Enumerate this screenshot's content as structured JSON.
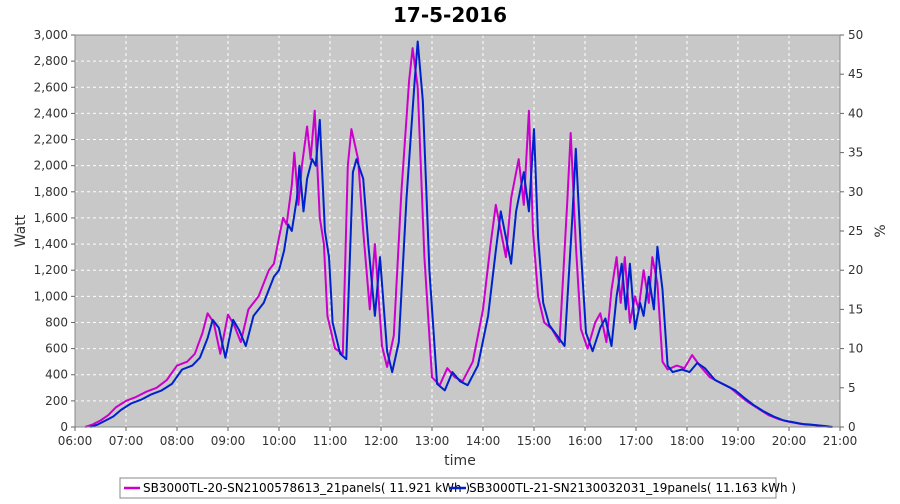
{
  "chart_data": {
    "type": "line",
    "title": "17-5-2016",
    "xlabel": "time",
    "ylabel": "Watt",
    "y2label": "%",
    "xlim": [
      6.0,
      21.0
    ],
    "ylim": [
      0,
      3000
    ],
    "y2lim": [
      0,
      50
    ],
    "xticks": [
      6,
      7,
      8,
      9,
      10,
      11,
      12,
      13,
      14,
      15,
      16,
      17,
      18,
      19,
      20,
      21
    ],
    "xtick_labels": [
      "06:00",
      "07:00",
      "08:00",
      "09:00",
      "10:00",
      "11:00",
      "12:00",
      "13:00",
      "14:00",
      "15:00",
      "16:00",
      "17:00",
      "18:00",
      "19:00",
      "20:00",
      "21:00"
    ],
    "yticks": [
      0,
      200,
      400,
      600,
      800,
      1000,
      1200,
      1400,
      1600,
      1800,
      2000,
      2200,
      2400,
      2600,
      2800,
      3000
    ],
    "ytick_labels": [
      "0",
      "200",
      "400",
      "600",
      "800",
      "1,000",
      "1,200",
      "1,400",
      "1,600",
      "1,800",
      "2,000",
      "2,200",
      "2,400",
      "2,600",
      "2,800",
      "3,000"
    ],
    "y2ticks": [
      0,
      5,
      10,
      15,
      20,
      25,
      30,
      35,
      40,
      45,
      50
    ],
    "y2tick_labels": [
      "0",
      "5",
      "10",
      "15",
      "20",
      "25",
      "30",
      "35",
      "40",
      "45",
      "50"
    ],
    "grid": true,
    "background": "#c8c8c8",
    "legend_position": "bottom",
    "series": [
      {
        "name": "SB3000TL-20-SN2100578613_21panels( 11.921 kWh )",
        "color": "#cc00cc",
        "points": [
          [
            6.2,
            0
          ],
          [
            6.35,
            20
          ],
          [
            6.5,
            50
          ],
          [
            6.65,
            90
          ],
          [
            6.8,
            150
          ],
          [
            7.0,
            200
          ],
          [
            7.2,
            230
          ],
          [
            7.4,
            270
          ],
          [
            7.6,
            300
          ],
          [
            7.8,
            360
          ],
          [
            8.0,
            470
          ],
          [
            8.2,
            500
          ],
          [
            8.35,
            560
          ],
          [
            8.5,
            720
          ],
          [
            8.6,
            870
          ],
          [
            8.72,
            800
          ],
          [
            8.85,
            560
          ],
          [
            9.0,
            860
          ],
          [
            9.12,
            780
          ],
          [
            9.25,
            650
          ],
          [
            9.4,
            900
          ],
          [
            9.6,
            1000
          ],
          [
            9.8,
            1200
          ],
          [
            9.9,
            1250
          ],
          [
            10.0,
            1450
          ],
          [
            10.08,
            1600
          ],
          [
            10.15,
            1550
          ],
          [
            10.25,
            1850
          ],
          [
            10.3,
            2100
          ],
          [
            10.38,
            1700
          ],
          [
            10.45,
            2000
          ],
          [
            10.55,
            2300
          ],
          [
            10.62,
            2050
          ],
          [
            10.7,
            2420
          ],
          [
            10.8,
            1600
          ],
          [
            10.88,
            1400
          ],
          [
            10.95,
            850
          ],
          [
            11.1,
            600
          ],
          [
            11.25,
            560
          ],
          [
            11.35,
            2000
          ],
          [
            11.42,
            2280
          ],
          [
            11.55,
            2050
          ],
          [
            11.65,
            1500
          ],
          [
            11.78,
            900
          ],
          [
            11.88,
            1400
          ],
          [
            12.02,
            620
          ],
          [
            12.12,
            460
          ],
          [
            12.25,
            700
          ],
          [
            12.4,
            1800
          ],
          [
            12.55,
            2650
          ],
          [
            12.62,
            2900
          ],
          [
            12.72,
            2600
          ],
          [
            12.85,
            1300
          ],
          [
            13.0,
            380
          ],
          [
            13.15,
            320
          ],
          [
            13.3,
            450
          ],
          [
            13.45,
            380
          ],
          [
            13.6,
            350
          ],
          [
            13.8,
            500
          ],
          [
            14.0,
            900
          ],
          [
            14.15,
            1400
          ],
          [
            14.25,
            1700
          ],
          [
            14.35,
            1500
          ],
          [
            14.45,
            1300
          ],
          [
            14.55,
            1750
          ],
          [
            14.7,
            2050
          ],
          [
            14.8,
            1700
          ],
          [
            14.9,
            2420
          ],
          [
            14.98,
            1500
          ],
          [
            15.08,
            1000
          ],
          [
            15.2,
            800
          ],
          [
            15.35,
            750
          ],
          [
            15.5,
            650
          ],
          [
            15.65,
            1700
          ],
          [
            15.72,
            2250
          ],
          [
            15.82,
            1400
          ],
          [
            15.92,
            750
          ],
          [
            16.05,
            600
          ],
          [
            16.2,
            800
          ],
          [
            16.3,
            870
          ],
          [
            16.42,
            650
          ],
          [
            16.52,
            1050
          ],
          [
            16.62,
            1300
          ],
          [
            16.7,
            950
          ],
          [
            16.78,
            1300
          ],
          [
            16.88,
            800
          ],
          [
            16.98,
            1000
          ],
          [
            17.05,
            900
          ],
          [
            17.15,
            1200
          ],
          [
            17.25,
            950
          ],
          [
            17.32,
            1300
          ],
          [
            17.42,
            1100
          ],
          [
            17.52,
            500
          ],
          [
            17.62,
            440
          ],
          [
            17.8,
            470
          ],
          [
            17.95,
            450
          ],
          [
            18.1,
            550
          ],
          [
            18.25,
            470
          ],
          [
            18.45,
            380
          ],
          [
            18.65,
            340
          ],
          [
            18.85,
            300
          ],
          [
            19.0,
            250
          ],
          [
            19.2,
            190
          ],
          [
            19.4,
            140
          ],
          [
            19.6,
            90
          ],
          [
            19.8,
            60
          ],
          [
            20.0,
            40
          ],
          [
            20.2,
            25
          ],
          [
            20.4,
            20
          ],
          [
            20.6,
            10
          ],
          [
            20.8,
            0
          ]
        ]
      },
      {
        "name": "SB3000TL-21-SN2130032031_19panels( 11.163 kWh )",
        "color": "#0022cc",
        "points": [
          [
            6.3,
            0
          ],
          [
            6.45,
            20
          ],
          [
            6.6,
            50
          ],
          [
            6.75,
            80
          ],
          [
            6.9,
            130
          ],
          [
            7.1,
            180
          ],
          [
            7.3,
            210
          ],
          [
            7.5,
            250
          ],
          [
            7.7,
            280
          ],
          [
            7.9,
            330
          ],
          [
            8.1,
            440
          ],
          [
            8.3,
            470
          ],
          [
            8.45,
            530
          ],
          [
            8.6,
            680
          ],
          [
            8.7,
            820
          ],
          [
            8.82,
            760
          ],
          [
            8.95,
            530
          ],
          [
            9.1,
            820
          ],
          [
            9.22,
            740
          ],
          [
            9.35,
            620
          ],
          [
            9.5,
            850
          ],
          [
            9.7,
            950
          ],
          [
            9.9,
            1150
          ],
          [
            10.0,
            1200
          ],
          [
            10.1,
            1350
          ],
          [
            10.18,
            1550
          ],
          [
            10.25,
            1500
          ],
          [
            10.35,
            1750
          ],
          [
            10.4,
            2000
          ],
          [
            10.48,
            1650
          ],
          [
            10.55,
            1900
          ],
          [
            10.65,
            2050
          ],
          [
            10.72,
            2000
          ],
          [
            10.8,
            2350
          ],
          [
            10.9,
            1500
          ],
          [
            10.98,
            1300
          ],
          [
            11.05,
            800
          ],
          [
            11.2,
            560
          ],
          [
            11.32,
            520
          ],
          [
            11.45,
            1950
          ],
          [
            11.52,
            2050
          ],
          [
            11.65,
            1900
          ],
          [
            11.75,
            1400
          ],
          [
            11.88,
            850
          ],
          [
            11.98,
            1300
          ],
          [
            12.12,
            580
          ],
          [
            12.22,
            420
          ],
          [
            12.35,
            650
          ],
          [
            12.5,
            1750
          ],
          [
            12.65,
            2600
          ],
          [
            12.72,
            2950
          ],
          [
            12.82,
            2500
          ],
          [
            12.95,
            1200
          ],
          [
            13.1,
            330
          ],
          [
            13.25,
            280
          ],
          [
            13.4,
            420
          ],
          [
            13.55,
            350
          ],
          [
            13.7,
            320
          ],
          [
            13.9,
            470
          ],
          [
            14.1,
            850
          ],
          [
            14.25,
            1350
          ],
          [
            14.35,
            1650
          ],
          [
            14.45,
            1450
          ],
          [
            14.55,
            1250
          ],
          [
            14.65,
            1650
          ],
          [
            14.8,
            1950
          ],
          [
            14.9,
            1650
          ],
          [
            15.0,
            2280
          ],
          [
            15.08,
            1450
          ],
          [
            15.18,
            950
          ],
          [
            15.3,
            780
          ],
          [
            15.45,
            700
          ],
          [
            15.6,
            620
          ],
          [
            15.75,
            1600
          ],
          [
            15.82,
            2130
          ],
          [
            15.92,
            1350
          ],
          [
            16.02,
            720
          ],
          [
            16.15,
            580
          ],
          [
            16.3,
            760
          ],
          [
            16.4,
            830
          ],
          [
            16.52,
            620
          ],
          [
            16.62,
            1000
          ],
          [
            16.72,
            1250
          ],
          [
            16.8,
            900
          ],
          [
            16.88,
            1250
          ],
          [
            16.98,
            750
          ],
          [
            17.08,
            950
          ],
          [
            17.15,
            850
          ],
          [
            17.25,
            1150
          ],
          [
            17.35,
            900
          ],
          [
            17.42,
            1380
          ],
          [
            17.52,
            1050
          ],
          [
            17.62,
            470
          ],
          [
            17.72,
            420
          ],
          [
            17.9,
            440
          ],
          [
            18.05,
            420
          ],
          [
            18.2,
            490
          ],
          [
            18.35,
            450
          ],
          [
            18.55,
            360
          ],
          [
            18.75,
            320
          ],
          [
            18.95,
            280
          ],
          [
            19.1,
            230
          ],
          [
            19.3,
            170
          ],
          [
            19.5,
            120
          ],
          [
            19.7,
            80
          ],
          [
            19.9,
            50
          ],
          [
            20.1,
            35
          ],
          [
            20.3,
            20
          ],
          [
            20.5,
            15
          ],
          [
            20.7,
            8
          ],
          [
            20.85,
            0
          ]
        ]
      }
    ]
  }
}
